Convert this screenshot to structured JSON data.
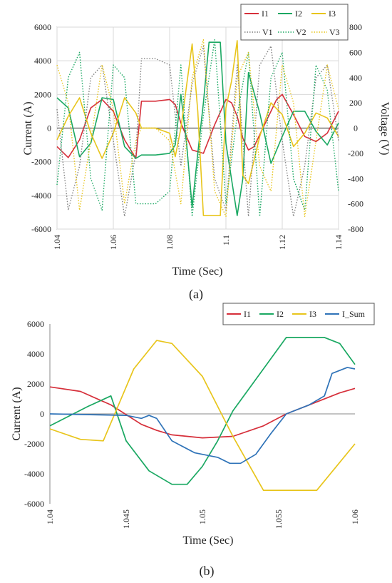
{
  "colors": {
    "I1": "#d62f3a",
    "I2": "#1aa862",
    "I3": "#e8c51c",
    "I_Sum": "#2f73b8",
    "grid": "#d9d9d9",
    "axis": "#888888"
  },
  "chart_data": [
    {
      "type": "line",
      "caption": "(a)",
      "xlabel": "Time (Sec)",
      "ylabel": "Current (A)",
      "y2label": "Voltage (V)",
      "xlim": [
        1.04,
        1.14
      ],
      "ylim": [
        -6000,
        6000
      ],
      "y2lim": [
        -800,
        800
      ],
      "xticks": [
        "1.04",
        "1.06",
        "1.08",
        "1.1",
        "1.12",
        "1.14"
      ],
      "yticks": [
        "6000",
        "4000",
        "2000",
        "0",
        "-2000",
        "-4000",
        "-6000"
      ],
      "y2ticks": [
        "800",
        "600",
        "400",
        "200",
        "0",
        "-200",
        "-400",
        "-600",
        "-800"
      ],
      "grid": true,
      "legend_position": "top-right",
      "legend": [
        "I1",
        "I2",
        "I3",
        "V1",
        "V2",
        "V3"
      ],
      "series": [
        {
          "name": "I1",
          "axis": "left",
          "style": "solid",
          "color": "#d62f3a",
          "x": [
            1.04,
            1.044,
            1.048,
            1.052,
            1.056,
            1.06,
            1.064,
            1.068,
            1.07,
            1.075,
            1.08,
            1.082,
            1.084,
            1.088,
            1.092,
            1.096,
            1.1,
            1.102,
            1.104,
            1.106,
            1.108,
            1.11,
            1.114,
            1.118,
            1.12,
            1.124,
            1.128,
            1.132,
            1.136,
            1.14
          ],
          "y": [
            -1100,
            -1750,
            -700,
            1200,
            1700,
            1000,
            -700,
            -1800,
            1600,
            1600,
            1700,
            1400,
            300,
            -1300,
            -1500,
            200,
            1700,
            1500,
            700,
            -600,
            -1300,
            -1100,
            300,
            1700,
            2000,
            800,
            -500,
            -800,
            -300,
            1000
          ]
        },
        {
          "name": "I2",
          "axis": "left",
          "style": "solid",
          "color": "#1aa862",
          "x": [
            1.04,
            1.044,
            1.048,
            1.052,
            1.056,
            1.06,
            1.064,
            1.068,
            1.07,
            1.075,
            1.08,
            1.082,
            1.084,
            1.086,
            1.088,
            1.09,
            1.092,
            1.094,
            1.098,
            1.1,
            1.104,
            1.106,
            1.108,
            1.112,
            1.116,
            1.12,
            1.124,
            1.128,
            1.132,
            1.136,
            1.14
          ],
          "y": [
            1800,
            1200,
            -1700,
            -900,
            1800,
            1700,
            -1100,
            -1800,
            -1600,
            -1600,
            -1500,
            -1000,
            2000,
            -900,
            -4700,
            -1500,
            1500,
            5100,
            5100,
            -900,
            -5200,
            -3000,
            3300,
            900,
            -2100,
            -500,
            1000,
            1000,
            -200,
            -1000,
            300
          ]
        },
        {
          "name": "I3",
          "axis": "left",
          "style": "solid",
          "color": "#e8c51c",
          "x": [
            1.04,
            1.044,
            1.048,
            1.052,
            1.056,
            1.06,
            1.064,
            1.068,
            1.07,
            1.075,
            1.08,
            1.082,
            1.084,
            1.086,
            1.088,
            1.09,
            1.092,
            1.094,
            1.098,
            1.1,
            1.102,
            1.104,
            1.106,
            1.108,
            1.112,
            1.116,
            1.12,
            1.124,
            1.128,
            1.132,
            1.136,
            1.14
          ],
          "y": [
            -700,
            700,
            1800,
            -300,
            -1800,
            -300,
            1800,
            900,
            0,
            0,
            -300,
            -1700,
            0,
            2500,
            5000,
            1000,
            -5200,
            -5200,
            -5200,
            1200,
            2800,
            5200,
            -2800,
            -3300,
            -500,
            1500,
            800,
            -1100,
            -300,
            900,
            600,
            -500
          ]
        },
        {
          "name": "V1",
          "axis": "right",
          "style": "dotted",
          "color": "#7f7f7f",
          "x": [
            1.04,
            1.044,
            1.048,
            1.052,
            1.056,
            1.06,
            1.064,
            1.068,
            1.07,
            1.075,
            1.08,
            1.084,
            1.088,
            1.092,
            1.096,
            1.1,
            1.104,
            1.108,
            1.112,
            1.116,
            1.12,
            1.124,
            1.128,
            1.132,
            1.136,
            1.14
          ],
          "y": [
            150,
            -650,
            -300,
            400,
            500,
            -100,
            -700,
            -200,
            550,
            550,
            500,
            -300,
            350,
            650,
            -400,
            -650,
            500,
            -700,
            500,
            650,
            -100,
            -700,
            -300,
            400,
            500,
            -100
          ]
        },
        {
          "name": "V2",
          "axis": "right",
          "style": "dotted",
          "color": "#1aa862",
          "x": [
            1.04,
            1.044,
            1.048,
            1.052,
            1.056,
            1.06,
            1.064,
            1.068,
            1.07,
            1.075,
            1.08,
            1.084,
            1.088,
            1.092,
            1.096,
            1.1,
            1.104,
            1.108,
            1.112,
            1.116,
            1.12,
            1.124,
            1.128,
            1.132,
            1.136,
            1.14
          ],
          "y": [
            -450,
            400,
            600,
            -400,
            -650,
            500,
            400,
            -600,
            -600,
            -600,
            -500,
            500,
            -700,
            100,
            700,
            -600,
            100,
            600,
            -700,
            400,
            600,
            -400,
            -650,
            500,
            300,
            -500
          ]
        },
        {
          "name": "V3",
          "axis": "right",
          "style": "dotted",
          "color": "#e8c51c",
          "x": [
            1.04,
            1.044,
            1.048,
            1.052,
            1.056,
            1.06,
            1.064,
            1.068,
            1.07,
            1.075,
            1.08,
            1.084,
            1.088,
            1.092,
            1.096,
            1.1,
            1.104,
            1.108,
            1.112,
            1.116,
            1.12,
            1.124,
            1.128,
            1.132,
            1.136,
            1.14
          ],
          "y": [
            500,
            200,
            -650,
            -100,
            500,
            150,
            -600,
            -100,
            0,
            0,
            -100,
            -600,
            400,
            700,
            -500,
            -700,
            400,
            600,
            -300,
            -500,
            500,
            200,
            -700,
            -100,
            500,
            150
          ]
        }
      ]
    },
    {
      "type": "line",
      "caption": "(b)",
      "xlabel": "Time (Sec)",
      "ylabel": "Current (A)",
      "xlim": [
        1.04,
        1.06
      ],
      "ylim": [
        -6000,
        6000
      ],
      "xticks": [
        "1.04",
        "1.045",
        "1.05",
        "1.055",
        "1.06"
      ],
      "yticks": [
        "6000",
        "4000",
        "2000",
        "0",
        "-2000",
        "-4000",
        "-6000"
      ],
      "grid": false,
      "legend_position": "top",
      "legend": [
        "I1",
        "I2",
        "I3",
        "I_Sum"
      ],
      "series": [
        {
          "name": "I1",
          "color": "#d62f3a",
          "x": [
            1.04,
            1.042,
            1.044,
            1.046,
            1.047,
            1.048,
            1.05,
            1.052,
            1.054,
            1.0555,
            1.057,
            1.059,
            1.06
          ],
          "y": [
            1800,
            1500,
            600,
            -700,
            -1100,
            -1400,
            -1600,
            -1500,
            -800,
            0,
            600,
            1400,
            1700
          ]
        },
        {
          "name": "I2",
          "color": "#1aa862",
          "x": [
            1.04,
            1.0425,
            1.044,
            1.045,
            1.0465,
            1.048,
            1.049,
            1.05,
            1.051,
            1.052,
            1.054,
            1.0555,
            1.058,
            1.059,
            1.06
          ],
          "y": [
            -800,
            500,
            1200,
            -1800,
            -3800,
            -4700,
            -4700,
            -3500,
            -1800,
            200,
            3000,
            5100,
            5100,
            4700,
            3300
          ]
        },
        {
          "name": "I3",
          "color": "#e8c51c",
          "x": [
            1.04,
            1.042,
            1.0435,
            1.0445,
            1.0455,
            1.047,
            1.048,
            1.05,
            1.052,
            1.054,
            1.0565,
            1.0575,
            1.06
          ],
          "y": [
            -1000,
            -1700,
            -1800,
            600,
            3000,
            4900,
            4700,
            2500,
            -1500,
            -5100,
            -5100,
            -5100,
            -2000
          ]
        },
        {
          "name": "I_Sum",
          "color": "#2f73b8",
          "x": [
            1.04,
            1.045,
            1.046,
            1.0465,
            1.047,
            1.048,
            1.0495,
            1.051,
            1.0518,
            1.0525,
            1.0535,
            1.0545,
            1.0555,
            1.057,
            1.058,
            1.0585,
            1.0595,
            1.06
          ],
          "y": [
            0,
            -100,
            -300,
            -100,
            -300,
            -1800,
            -2600,
            -2900,
            -3300,
            -3300,
            -2700,
            -1300,
            0,
            600,
            1200,
            2700,
            3100,
            3000
          ]
        }
      ]
    }
  ]
}
